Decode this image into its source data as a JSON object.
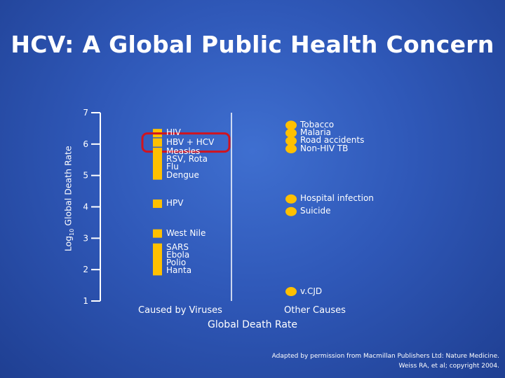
{
  "slide": {
    "title": "HCV: A Global Public Health Concern",
    "credit_line1": "Adapted by permission from Macmillan Publishers Ltd: Nature Medicine.",
    "credit_line2": "Weiss RA, et al; copyright 2004."
  },
  "colors": {
    "marker": "#ffc000",
    "highlight": "#d01420",
    "axis": "#ffffff"
  },
  "chart_data": {
    "type": "scatter",
    "title": "HCV: A Global Public Health Concern",
    "ylabel_main": "Log",
    "ylabel_sub": "10",
    "ylabel_rest": " Global Death Rate",
    "xlabel": "Global Death Rate",
    "ylim": [
      1,
      7
    ],
    "yticks": [
      "7",
      "6",
      "5",
      "4",
      "3",
      "2",
      "1"
    ],
    "categories": [
      "Caused by Viruses",
      "Other Causes"
    ],
    "series": [
      {
        "name": "Caused by Viruses",
        "marker": "square",
        "points": [
          {
            "label": "HIV",
            "y": 6.35
          },
          {
            "label": "HBV + HCV",
            "y": 6.05,
            "highlighted": true
          },
          {
            "label": "Measles",
            "y": 5.75
          },
          {
            "label": "RSV, Rota",
            "y": 5.5
          },
          {
            "label": "Flu",
            "y": 5.25
          },
          {
            "label": "Dengue",
            "y": 5.0
          },
          {
            "label": "HPV",
            "y": 4.1
          },
          {
            "label": "West Nile",
            "y": 3.15
          },
          {
            "label": "SARS",
            "y": 2.7
          },
          {
            "label": "Ebola",
            "y": 2.45
          },
          {
            "label": "Polio",
            "y": 2.2
          },
          {
            "label": "Hanta",
            "y": 1.95
          }
        ]
      },
      {
        "name": "Other Causes",
        "marker": "circle",
        "points": [
          {
            "label": "Tobacco",
            "y": 6.6
          },
          {
            "label": "Malaria",
            "y": 6.35
          },
          {
            "label": "Road accidents",
            "y": 6.1
          },
          {
            "label": "Non-HIV TB",
            "y": 5.85
          },
          {
            "label": "Hospital infection",
            "y": 4.25
          },
          {
            "label": "Suicide",
            "y": 3.85
          },
          {
            "label": "v.CJD",
            "y": 1.3
          }
        ]
      }
    ]
  }
}
